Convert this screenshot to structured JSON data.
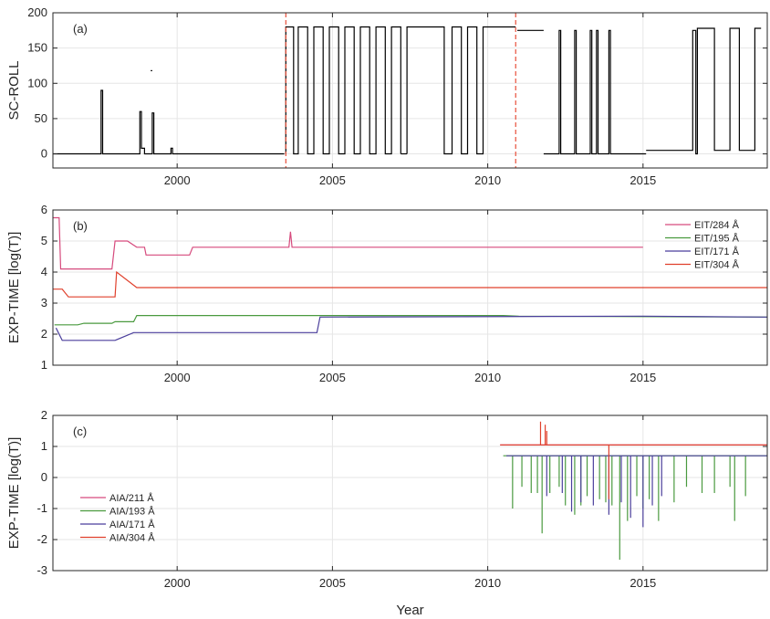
{
  "chart_data": [
    {
      "type": "line",
      "panel_label": "(a)",
      "ylabel": "SC-ROLL",
      "xlim": [
        1996.0,
        2019.0
      ],
      "ylim": [
        -20,
        200
      ],
      "xticks": [
        2000,
        2005,
        2010,
        2015
      ],
      "yticks": [
        0,
        50,
        100,
        150,
        200
      ],
      "grid": true,
      "markers": {
        "vertical_dashed_lines": [
          2003.5,
          2010.9
        ],
        "marker_color": "#e8503a"
      },
      "series": [
        {
          "color": "#000000",
          "segments": [
            [
              [
                1996.0,
                0
              ],
              [
                1997.55,
                0
              ],
              [
                1997.55,
                90
              ],
              [
                1997.6,
                90
              ],
              [
                1997.6,
                0
              ],
              [
                1998.8,
                0
              ],
              [
                1998.8,
                60
              ],
              [
                1998.85,
                60
              ],
              [
                1998.85,
                8
              ],
              [
                1998.95,
                8
              ],
              [
                1998.95,
                0
              ],
              [
                1999.2,
                0
              ],
              [
                1999.2,
                58
              ],
              [
                1999.25,
                58
              ],
              [
                1999.25,
                0
              ],
              [
                1999.8,
                0
              ],
              [
                1999.8,
                8
              ],
              [
                1999.85,
                8
              ],
              [
                1999.85,
                0
              ],
              [
                2003.45,
                0
              ]
            ],
            [
              [
                1999.15,
                118
              ],
              [
                1999.2,
                118
              ]
            ],
            [
              [
                2003.5,
                0
              ],
              [
                2003.5,
                180
              ],
              [
                2003.75,
                180
              ],
              [
                2003.75,
                0
              ],
              [
                2003.9,
                0
              ],
              [
                2003.9,
                180
              ],
              [
                2004.2,
                180
              ],
              [
                2004.2,
                0
              ],
              [
                2004.4,
                0
              ],
              [
                2004.4,
                180
              ],
              [
                2004.7,
                180
              ],
              [
                2004.7,
                0
              ],
              [
                2004.9,
                0
              ],
              [
                2004.9,
                180
              ],
              [
                2005.2,
                180
              ],
              [
                2005.2,
                0
              ],
              [
                2005.4,
                0
              ],
              [
                2005.4,
                180
              ],
              [
                2005.7,
                180
              ],
              [
                2005.7,
                0
              ],
              [
                2005.9,
                0
              ],
              [
                2005.9,
                180
              ],
              [
                2006.2,
                180
              ],
              [
                2006.2,
                0
              ],
              [
                2006.4,
                0
              ],
              [
                2006.4,
                180
              ],
              [
                2006.7,
                180
              ],
              [
                2006.7,
                0
              ],
              [
                2006.9,
                0
              ],
              [
                2006.9,
                180
              ],
              [
                2007.2,
                180
              ],
              [
                2007.2,
                0
              ]
            ],
            [
              [
                2007.2,
                0
              ],
              [
                2007.4,
                0
              ]
            ],
            [
              [
                2007.4,
                0
              ],
              [
                2007.4,
                180
              ],
              [
                2008.6,
                180
              ],
              [
                2008.6,
                0
              ],
              [
                2008.85,
                0
              ],
              [
                2008.85,
                180
              ],
              [
                2009.15,
                180
              ],
              [
                2009.15,
                0
              ],
              [
                2009.35,
                0
              ],
              [
                2009.35,
                180
              ],
              [
                2009.65,
                180
              ],
              [
                2009.65,
                0
              ],
              [
                2009.85,
                0
              ],
              [
                2009.85,
                180
              ],
              [
                2010.9,
                180
              ]
            ],
            [
              [
                2010.95,
                175
              ],
              [
                2011.8,
                175
              ]
            ],
            [
              [
                2011.8,
                0
              ],
              [
                2012.3,
                0
              ],
              [
                2012.3,
                175
              ],
              [
                2012.35,
                175
              ],
              [
                2012.35,
                0
              ],
              [
                2012.8,
                0
              ],
              [
                2012.8,
                175
              ],
              [
                2012.85,
                175
              ],
              [
                2012.85,
                0
              ],
              [
                2013.3,
                0
              ],
              [
                2013.3,
                175
              ],
              [
                2013.35,
                175
              ],
              [
                2013.35,
                0
              ],
              [
                2013.5,
                0
              ],
              [
                2013.5,
                175
              ],
              [
                2013.55,
                175
              ],
              [
                2013.55,
                0
              ],
              [
                2013.9,
                0
              ],
              [
                2013.9,
                175
              ],
              [
                2013.95,
                175
              ],
              [
                2013.95,
                0
              ],
              [
                2015.1,
                0
              ]
            ],
            [
              [
                2015.1,
                5
              ],
              [
                2016.6,
                5
              ],
              [
                2016.6,
                175
              ],
              [
                2016.7,
                175
              ],
              [
                2016.7,
                0
              ],
              [
                2016.75,
                0
              ],
              [
                2016.75,
                178
              ],
              [
                2017.3,
                178
              ],
              [
                2017.3,
                5
              ],
              [
                2017.8,
                5
              ],
              [
                2017.8,
                178
              ],
              [
                2018.1,
                178
              ],
              [
                2018.1,
                5
              ],
              [
                2018.6,
                5
              ],
              [
                2018.6,
                178
              ],
              [
                2018.8,
                178
              ]
            ]
          ]
        }
      ]
    },
    {
      "type": "line",
      "panel_label": "(b)",
      "ylabel": "EXP-TIME [log(T)]",
      "xlim": [
        1996.0,
        2019.0
      ],
      "ylim": [
        1,
        6
      ],
      "xticks": [
        2000,
        2005,
        2010,
        2015
      ],
      "yticks": [
        1,
        2,
        3,
        4,
        5,
        6
      ],
      "grid": true,
      "legend_position": "top-right",
      "series": [
        {
          "name": "EIT/284 Å",
          "color": "#d64a7d",
          "points": [
            [
              1996.0,
              5.75
            ],
            [
              1996.2,
              5.75
            ],
            [
              1996.25,
              4.1
            ],
            [
              1997.0,
              4.1
            ],
            [
              1997.05,
              4.1
            ],
            [
              1997.9,
              4.1
            ],
            [
              1998.0,
              5.0
            ],
            [
              1998.4,
              5.0
            ],
            [
              1998.7,
              4.8
            ],
            [
              1998.95,
              4.8
            ],
            [
              1999.0,
              4.55
            ],
            [
              2000.4,
              4.55
            ],
            [
              2000.5,
              4.8
            ],
            [
              2003.6,
              4.8
            ],
            [
              2003.65,
              5.3
            ],
            [
              2003.7,
              4.8
            ],
            [
              2015.0,
              4.8
            ]
          ]
        },
        {
          "name": "EIT/195 Å",
          "color": "#4a9a3f",
          "points": [
            [
              1996.05,
              2.3
            ],
            [
              1996.8,
              2.3
            ],
            [
              1997.0,
              2.35
            ],
            [
              1997.9,
              2.35
            ],
            [
              1998.0,
              2.4
            ],
            [
              1998.6,
              2.4
            ],
            [
              1998.7,
              2.6
            ],
            [
              2010.5,
              2.6
            ],
            [
              2011.0,
              2.58
            ],
            [
              2019.0,
              2.55
            ]
          ]
        },
        {
          "name": "EIT/171 Å",
          "color": "#4b3f9c",
          "points": [
            [
              1996.1,
              2.2
            ],
            [
              1996.3,
              1.8
            ],
            [
              1998.0,
              1.8
            ],
            [
              1998.6,
              2.05
            ],
            [
              2004.5,
              2.05
            ],
            [
              2004.6,
              2.55
            ],
            [
              2015.0,
              2.58
            ],
            [
              2019.0,
              2.55
            ]
          ]
        },
        {
          "name": "EIT/304 Å",
          "color": "#e0402c",
          "points": [
            [
              1996.0,
              3.45
            ],
            [
              1996.3,
              3.45
            ],
            [
              1996.5,
              3.2
            ],
            [
              1998.0,
              3.2
            ],
            [
              1998.05,
              4.0
            ],
            [
              1998.7,
              3.5
            ],
            [
              2019.0,
              3.5
            ]
          ]
        }
      ]
    },
    {
      "type": "line",
      "panel_label": "(c)",
      "xlabel": "Year",
      "ylabel": "EXP-TIME [log(T)]",
      "xlim": [
        1996.0,
        2019.0
      ],
      "ylim": [
        -3,
        2
      ],
      "xticks": [
        2000,
        2005,
        2010,
        2015
      ],
      "yticks": [
        -3,
        -2,
        -1,
        0,
        1,
        2
      ],
      "grid": true,
      "legend_position": "bottom-left",
      "series": [
        {
          "name": "AIA/211 Å",
          "color": "#d64a7d",
          "points": [
            [
              2010.4,
              1.05
            ],
            [
              2019.0,
              1.05
            ]
          ]
        },
        {
          "name": "AIA/193 Å",
          "color": "#4a9a3f",
          "points": [
            [
              2010.5,
              0.7
            ],
            [
              2019.0,
              0.7
            ]
          ],
          "dips": [
            [
              2010.8,
              -1.0
            ],
            [
              2011.1,
              -0.3
            ],
            [
              2011.4,
              -0.5
            ],
            [
              2011.6,
              -0.5
            ],
            [
              2011.75,
              -1.8
            ],
            [
              2012.0,
              -0.5
            ],
            [
              2012.3,
              -0.3
            ],
            [
              2012.5,
              -0.9
            ],
            [
              2012.8,
              -1.2
            ],
            [
              2013.0,
              -0.9
            ],
            [
              2013.2,
              -0.6
            ],
            [
              2013.6,
              -0.7
            ],
            [
              2013.8,
              -0.8
            ],
            [
              2014.0,
              -0.9
            ],
            [
              2014.25,
              -2.65
            ],
            [
              2014.5,
              -1.4
            ],
            [
              2014.8,
              -0.6
            ],
            [
              2015.0,
              -1.0
            ],
            [
              2015.2,
              -0.7
            ],
            [
              2015.5,
              -1.4
            ],
            [
              2016.0,
              -0.8
            ],
            [
              2016.4,
              -0.3
            ],
            [
              2016.9,
              -0.5
            ],
            [
              2017.3,
              -0.5
            ],
            [
              2017.8,
              -0.3
            ],
            [
              2017.95,
              -1.4
            ],
            [
              2018.3,
              -0.6
            ]
          ]
        },
        {
          "name": "AIA/171 Å",
          "color": "#4b3f9c",
          "points": [
            [
              2010.6,
              0.7
            ],
            [
              2019.0,
              0.7
            ]
          ],
          "dips": [
            [
              2011.9,
              -0.6
            ],
            [
              2012.4,
              -0.5
            ],
            [
              2012.7,
              -1.1
            ],
            [
              2013.0,
              -0.8
            ],
            [
              2013.4,
              -0.9
            ],
            [
              2013.9,
              -1.2
            ],
            [
              2014.3,
              -0.8
            ],
            [
              2014.6,
              -1.3
            ],
            [
              2015.0,
              -1.6
            ],
            [
              2015.3,
              -0.9
            ],
            [
              2015.6,
              -0.6
            ]
          ]
        },
        {
          "name": "AIA/304 Å",
          "color": "#e0402c",
          "points": [
            [
              2010.4,
              1.05
            ],
            [
              2019.0,
              1.05
            ]
          ],
          "spikes": [
            [
              2011.7,
              1.8
            ],
            [
              2011.85,
              1.7
            ],
            [
              2011.9,
              1.5
            ],
            [
              2013.9,
              -0.7
            ]
          ]
        }
      ]
    }
  ]
}
